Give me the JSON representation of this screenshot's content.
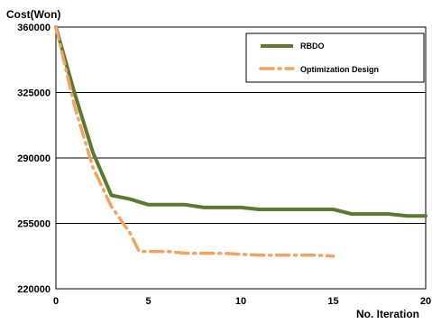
{
  "chart_data": {
    "type": "line",
    "xlabel": "No. Iteration",
    "ylabel": "Cost(Won)",
    "xlim": [
      0,
      20
    ],
    "ylim": [
      220000,
      360000
    ],
    "x_ticks": [
      0,
      5,
      10,
      15,
      20
    ],
    "y_ticks": [
      220000,
      255000,
      290000,
      325000,
      360000
    ],
    "grid": "horizontal",
    "legend_position": "top-right",
    "series": [
      {
        "name": "RBDO",
        "color": "#5b7a2e",
        "style": "solid",
        "x": [
          0,
          1,
          2,
          3,
          4,
          5,
          6,
          7,
          8,
          9,
          10,
          11,
          12,
          13,
          14,
          15,
          16,
          17,
          18,
          19,
          20
        ],
        "values": [
          360000,
          325000,
          293000,
          270000,
          268000,
          265000,
          265000,
          265000,
          263500,
          263500,
          263500,
          262500,
          262500,
          262500,
          262500,
          262500,
          260000,
          260000,
          260000,
          259000,
          259000
        ]
      },
      {
        "name": "Optimization Design",
        "color": "#f4a460",
        "style": "dash-dot",
        "x": [
          0,
          1,
          2,
          3,
          4,
          4.5,
          5,
          6,
          7,
          8,
          9,
          10,
          11,
          12,
          13,
          14,
          15
        ],
        "values": [
          360000,
          318000,
          285000,
          264000,
          250000,
          240000,
          240000,
          240000,
          239000,
          239000,
          239000,
          238500,
          238000,
          238000,
          238000,
          238000,
          237500
        ]
      }
    ]
  }
}
